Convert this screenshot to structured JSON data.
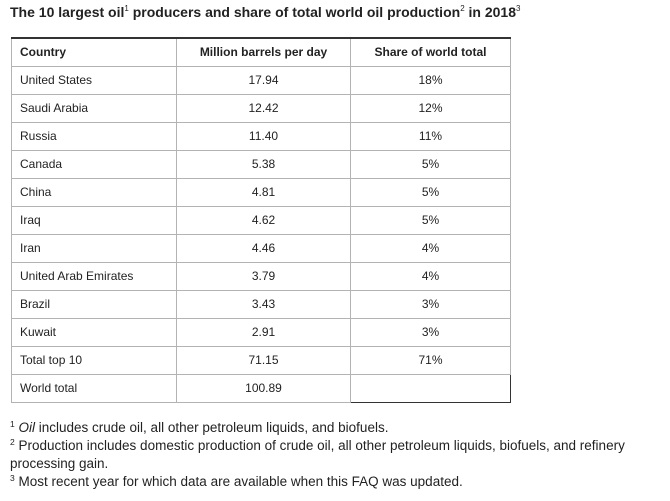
{
  "title": {
    "part1": "The 10 largest oil",
    "sup1": "1",
    "part2": " producers and share of total world oil production",
    "sup2": "2",
    "part3": " in 2018",
    "sup3": "3"
  },
  "table": {
    "headers": [
      "Country",
      "Million barrels per day",
      "Share of world total"
    ],
    "rows": [
      [
        "United States",
        "17.94",
        "18%"
      ],
      [
        "Saudi Arabia",
        "12.42",
        "12%"
      ],
      [
        "Russia",
        "11.40",
        "11%"
      ],
      [
        "Canada",
        "5.38",
        "5%"
      ],
      [
        "China",
        "4.81",
        "5%"
      ],
      [
        "Iraq",
        "4.62",
        "5%"
      ],
      [
        "Iran",
        "4.46",
        "4%"
      ],
      [
        "United Arab Emirates",
        "3.79",
        "4%"
      ],
      [
        "Brazil",
        "3.43",
        "3%"
      ],
      [
        "Kuwait",
        "2.91",
        "3%"
      ],
      [
        "Total top 10",
        "71.15",
        "71%"
      ],
      [
        "World total",
        "100.89",
        ""
      ]
    ]
  },
  "footnotes": [
    {
      "num": "1",
      "em": "Oil",
      "text": " includes crude oil, all other petroleum liquids, and biofuels."
    },
    {
      "num": "2",
      "em": "",
      "text": " Production includes domestic production of crude oil, all other petroleum liquids, biofuels, and refinery processing gain."
    },
    {
      "num": "3",
      "em": "",
      "text": " Most recent year for which data are available when this FAQ was updated."
    }
  ]
}
